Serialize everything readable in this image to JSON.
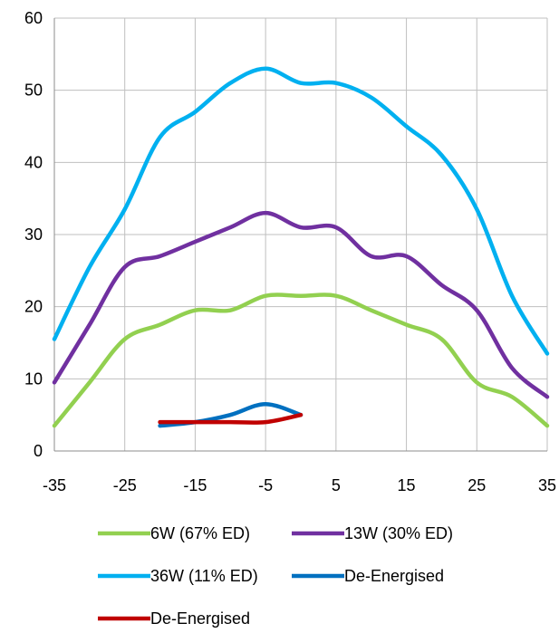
{
  "chart_data": {
    "type": "line",
    "title": "",
    "xlabel": "",
    "ylabel": "",
    "xlim": [
      -35,
      35
    ],
    "ylim": [
      0,
      60
    ],
    "xticks": [
      -35,
      -25,
      -15,
      -5,
      5,
      15,
      25,
      35
    ],
    "yticks": [
      0,
      10,
      20,
      30,
      40,
      50,
      60
    ],
    "xtick_labels": [
      "-35",
      "-25",
      "-15",
      "-5",
      "5",
      "15",
      "25",
      "35"
    ],
    "ytick_labels": [
      "0",
      "10",
      "20",
      "30",
      "40",
      "50",
      "60"
    ],
    "grid": true,
    "legend_position": "bottom",
    "series": [
      {
        "name": "6W (67% ED)",
        "color": "#92d050",
        "x": [
          -35,
          -30,
          -25,
          -20,
          -15,
          -10,
          -5,
          0,
          5,
          10,
          15,
          20,
          25,
          30,
          35
        ],
        "y": [
          3.5,
          9.5,
          15.5,
          17.5,
          19.5,
          19.5,
          21.5,
          21.5,
          21.5,
          19.5,
          17.5,
          15.5,
          9.5,
          7.5,
          3.5
        ]
      },
      {
        "name": "13W (30% ED)",
        "color": "#7030a0",
        "x": [
          -35,
          -30,
          -25,
          -20,
          -15,
          -10,
          -5,
          0,
          5,
          10,
          15,
          20,
          25,
          30,
          35
        ],
        "y": [
          9.5,
          17.5,
          25.5,
          27,
          29,
          31,
          33,
          31,
          31,
          27,
          27,
          23,
          19.5,
          11.5,
          7.5
        ]
      },
      {
        "name": "36W (11% ED)",
        "color": "#00b0f0",
        "x": [
          -35,
          -30,
          -25,
          -20,
          -15,
          -10,
          -5,
          0,
          5,
          10,
          15,
          20,
          25,
          30,
          35
        ],
        "y": [
          15.5,
          25.5,
          33.5,
          43.5,
          47,
          51,
          53,
          51,
          51,
          49,
          45,
          41,
          33.5,
          21.5,
          13.5
        ]
      },
      {
        "name": "De-Energised",
        "color": "#0070c0",
        "x": [
          -20,
          -15,
          -10,
          -5,
          0
        ],
        "y": [
          3.5,
          4,
          5,
          6.5,
          5
        ]
      },
      {
        "name": "De-Energised",
        "color": "#c00000",
        "x": [
          -20,
          -15,
          -10,
          -5,
          0
        ],
        "y": [
          4,
          4,
          4,
          4,
          5
        ]
      }
    ]
  }
}
